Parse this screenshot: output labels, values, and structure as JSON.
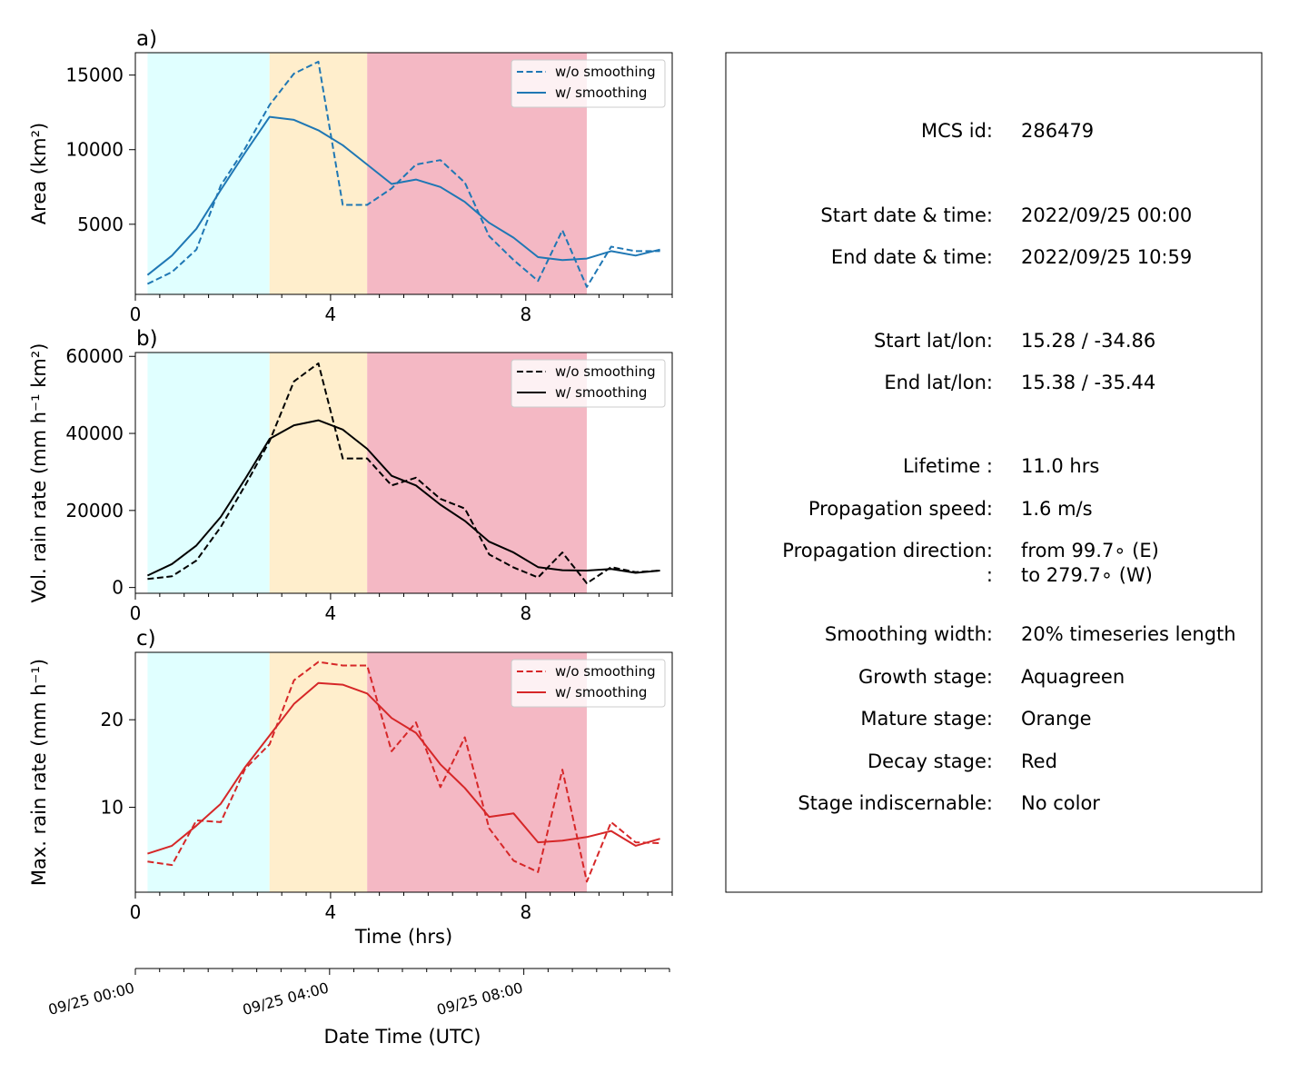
{
  "chart_data": [
    {
      "type": "line",
      "panel_label": "a)",
      "xlabel": "",
      "ylabel": "Area  (km²)",
      "xlim": [
        0,
        11
      ],
      "ylim": [
        300,
        16500
      ],
      "xticks": [
        0,
        4,
        8
      ],
      "yticks": [
        5000,
        10000,
        15000
      ],
      "stages": [
        {
          "start": 0.25,
          "end": 2.75,
          "color": "#e0ffff"
        },
        {
          "start": 2.75,
          "end": 4.75,
          "color": "#ffeecc"
        },
        {
          "start": 4.75,
          "end": 9.25,
          "color": "#f4b8c4"
        }
      ],
      "legend_position": "upper right",
      "series": [
        {
          "name": "w/o smoothing",
          "style": "dashed",
          "color": "#1f77b4",
          "x": [
            0.25,
            0.75,
            1.25,
            1.75,
            2.25,
            2.75,
            3.25,
            3.75,
            4.25,
            4.75,
            5.25,
            5.75,
            6.25,
            6.75,
            7.25,
            7.75,
            8.25,
            8.75,
            9.25,
            9.75,
            10.25,
            10.75
          ],
          "y": [
            1000,
            1800,
            3300,
            7600,
            10100,
            13000,
            15100,
            15900,
            6300,
            6300,
            7400,
            9000,
            9300,
            7800,
            4200,
            2600,
            1200,
            4600,
            800,
            3500,
            3200,
            3200
          ]
        },
        {
          "name": "w/ smoothing",
          "style": "solid",
          "color": "#1f77b4",
          "x": [
            0.25,
            0.75,
            1.25,
            1.75,
            2.25,
            2.75,
            3.25,
            3.75,
            4.25,
            4.75,
            5.25,
            5.75,
            6.25,
            6.75,
            7.25,
            7.75,
            8.25,
            8.75,
            9.25,
            9.75,
            10.25,
            10.75
          ],
          "y": [
            1600,
            2900,
            4700,
            7300,
            9800,
            12200,
            12000,
            11300,
            10300,
            9000,
            7700,
            8000,
            7500,
            6500,
            5100,
            4100,
            2800,
            2600,
            2700,
            3200,
            2900,
            3300
          ]
        }
      ]
    },
    {
      "type": "line",
      "panel_label": "b)",
      "xlabel": "",
      "ylabel": "Vol. rain rate (mm h⁻¹ km²)",
      "xlim": [
        0,
        11
      ],
      "ylim": [
        -1500,
        61000
      ],
      "xticks": [
        0,
        4,
        8
      ],
      "yticks": [
        0,
        20000,
        40000,
        60000
      ],
      "stages": [
        {
          "start": 0.25,
          "end": 2.75,
          "color": "#e0ffff"
        },
        {
          "start": 2.75,
          "end": 4.75,
          "color": "#ffeecc"
        },
        {
          "start": 4.75,
          "end": 9.25,
          "color": "#f4b8c4"
        }
      ],
      "legend_position": "upper right",
      "series": [
        {
          "name": "w/o smoothing",
          "style": "dashed",
          "color": "#000000",
          "x": [
            0.25,
            0.75,
            1.25,
            1.75,
            2.25,
            2.75,
            3.25,
            3.75,
            4.25,
            4.75,
            5.25,
            5.75,
            6.25,
            6.75,
            7.25,
            7.75,
            8.25,
            8.75,
            9.25,
            9.75,
            10.25,
            10.75
          ],
          "y": [
            2200,
            2900,
            7000,
            15700,
            26500,
            38000,
            53500,
            58200,
            33500,
            33500,
            26500,
            28500,
            23000,
            20500,
            8600,
            5200,
            2600,
            9100,
            1100,
            5300,
            4000,
            4400
          ]
        },
        {
          "name": "w/ smoothing",
          "style": "solid",
          "color": "#000000",
          "x": [
            0.25,
            0.75,
            1.25,
            1.75,
            2.25,
            2.75,
            3.25,
            3.75,
            4.25,
            4.75,
            5.25,
            5.75,
            6.25,
            6.75,
            7.25,
            7.75,
            8.25,
            8.75,
            9.25,
            9.75,
            10.25,
            10.75
          ],
          "y": [
            3100,
            6100,
            10900,
            18300,
            28200,
            38600,
            42100,
            43400,
            41000,
            36000,
            29000,
            26500,
            21500,
            17300,
            11900,
            9100,
            5300,
            4500,
            4400,
            4800,
            3800,
            4400
          ]
        }
      ]
    },
    {
      "type": "line",
      "panel_label": "c)",
      "xlabel": "Time (hrs)",
      "ylabel": "Max. rain rate  (mm h⁻¹)",
      "xlim": [
        0,
        11
      ],
      "ylim": [
        0.3,
        27.7
      ],
      "xticks": [
        0,
        4,
        8
      ],
      "yticks": [
        10,
        20
      ],
      "stages": [
        {
          "start": 0.25,
          "end": 2.75,
          "color": "#e0ffff"
        },
        {
          "start": 2.75,
          "end": 4.75,
          "color": "#ffeecc"
        },
        {
          "start": 4.75,
          "end": 9.25,
          "color": "#f4b8c4"
        }
      ],
      "legend_position": "upper right",
      "series": [
        {
          "name": "w/o smoothing",
          "style": "dashed",
          "color": "#d62728",
          "x": [
            0.25,
            0.75,
            1.25,
            1.75,
            2.25,
            2.75,
            3.25,
            3.75,
            4.25,
            4.75,
            5.25,
            5.75,
            6.25,
            6.75,
            7.25,
            7.75,
            8.25,
            8.75,
            9.25,
            9.75,
            10.25,
            10.75
          ],
          "y": [
            3.8,
            3.4,
            8.5,
            8.3,
            14.4,
            17.2,
            24.5,
            26.6,
            26.2,
            26.2,
            16.4,
            19.7,
            12.3,
            18.0,
            7.6,
            3.9,
            2.6,
            14.3,
            1.5,
            8.3,
            6.0,
            5.9
          ]
        },
        {
          "name": "w/ smoothing",
          "style": "solid",
          "color": "#d62728",
          "x": [
            0.25,
            0.75,
            1.25,
            1.75,
            2.25,
            2.75,
            3.25,
            3.75,
            4.25,
            4.75,
            5.25,
            5.75,
            6.25,
            6.75,
            7.25,
            7.75,
            8.25,
            8.75,
            9.25,
            9.75,
            10.25,
            10.75
          ],
          "y": [
            4.7,
            5.6,
            7.9,
            10.4,
            14.6,
            18.2,
            21.8,
            24.2,
            24.0,
            23.0,
            20.2,
            18.5,
            14.9,
            12.2,
            8.9,
            9.3,
            6.0,
            6.2,
            6.6,
            7.3,
            5.6,
            6.4
          ]
        }
      ]
    }
  ],
  "date_axis": {
    "label": "Date Time (UTC)",
    "xlim": [
      0,
      11
    ],
    "ticks": [
      {
        "x": 0,
        "label": "09/25 00:00"
      },
      {
        "x": 4,
        "label": "09/25 04:00"
      },
      {
        "x": 8,
        "label": "09/25 08:00"
      }
    ]
  },
  "info_panel": {
    "rows": [
      {
        "label": "MCS id:",
        "value": "286479"
      },
      {
        "label": "Start date & time:",
        "value": "2022/09/25 00:00"
      },
      {
        "label": "End date & time:",
        "value": "2022/09/25 10:59"
      },
      {
        "label": "Start lat/lon:",
        "value": "15.28 / -34.86"
      },
      {
        "label": "End lat/lon:",
        "value": "15.38 / -35.44"
      },
      {
        "label": "Lifetime :",
        "value": "11.0 hrs"
      },
      {
        "label": "Propagation speed:",
        "value": "1.6 m/s"
      },
      {
        "label": "Propagation direction:",
        "value": "from  99.7∘ (E)"
      },
      {
        "label": ":",
        "value": "to   279.7∘ (W)"
      },
      {
        "label": "Smoothing width:",
        "value": "20% timeseries length"
      },
      {
        "label": "Growth stage:",
        "value": "Aquagreen"
      },
      {
        "label": "Mature stage:",
        "value": "Orange"
      },
      {
        "label": "Decay stage:",
        "value": "Red"
      },
      {
        "label": "Stage indiscernable:",
        "value": "No color"
      }
    ]
  }
}
